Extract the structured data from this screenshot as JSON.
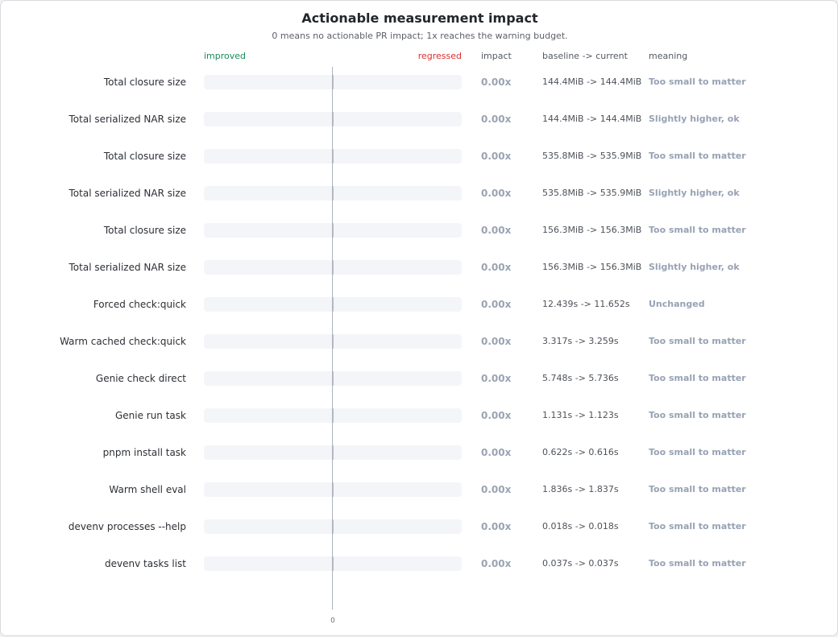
{
  "chart_data": {
    "type": "bar",
    "title": "Actionable measurement impact",
    "subtitle": "0 means no actionable PR impact; 1x reaches the warning budget.",
    "legend": {
      "improved": "improved",
      "regressed": "regressed"
    },
    "columns": {
      "impact": "impact",
      "change": "baseline -> current",
      "meaning": "meaning"
    },
    "x_tick": "0",
    "xlim": [
      -1,
      1
    ],
    "colors": {
      "improved": "#1a8c5b",
      "regressed": "#d93030",
      "neutral_bar": "#b4bcc8"
    },
    "rows": [
      {
        "label": "Total closure size",
        "value": 0,
        "impact": "0.00x",
        "change": "144.4MiB -> 144.4MiB",
        "meaning": "Too small to matter"
      },
      {
        "label": "Total serialized NAR size",
        "value": 0,
        "impact": "0.00x",
        "change": "144.4MiB -> 144.4MiB",
        "meaning": "Slightly higher, ok"
      },
      {
        "label": "Total closure size",
        "value": 0,
        "impact": "0.00x",
        "change": "535.8MiB -> 535.9MiB",
        "meaning": "Too small to matter"
      },
      {
        "label": "Total serialized NAR size",
        "value": 0,
        "impact": "0.00x",
        "change": "535.8MiB -> 535.9MiB",
        "meaning": "Slightly higher, ok"
      },
      {
        "label": "Total closure size",
        "value": 0,
        "impact": "0.00x",
        "change": "156.3MiB -> 156.3MiB",
        "meaning": "Too small to matter"
      },
      {
        "label": "Total serialized NAR size",
        "value": 0,
        "impact": "0.00x",
        "change": "156.3MiB -> 156.3MiB",
        "meaning": "Slightly higher, ok"
      },
      {
        "label": "Forced check:quick",
        "value": 0,
        "impact": "0.00x",
        "change": "12.439s -> 11.652s",
        "meaning": "Unchanged"
      },
      {
        "label": "Warm cached check:quick",
        "value": 0,
        "impact": "0.00x",
        "change": "3.317s -> 3.259s",
        "meaning": "Too small to matter"
      },
      {
        "label": "Genie check direct",
        "value": 0,
        "impact": "0.00x",
        "change": "5.748s -> 5.736s",
        "meaning": "Too small to matter"
      },
      {
        "label": "Genie run task",
        "value": 0,
        "impact": "0.00x",
        "change": "1.131s -> 1.123s",
        "meaning": "Too small to matter"
      },
      {
        "label": "pnpm install task",
        "value": 0,
        "impact": "0.00x",
        "change": "0.622s -> 0.616s",
        "meaning": "Too small to matter"
      },
      {
        "label": "Warm shell eval",
        "value": 0,
        "impact": "0.00x",
        "change": "1.836s -> 1.837s",
        "meaning": "Too small to matter"
      },
      {
        "label": "devenv processes --help",
        "value": 0,
        "impact": "0.00x",
        "change": "0.018s -> 0.018s",
        "meaning": "Too small to matter"
      },
      {
        "label": "devenv tasks list",
        "value": 0,
        "impact": "0.00x",
        "change": "0.037s -> 0.037s",
        "meaning": "Too small to matter"
      }
    ]
  }
}
